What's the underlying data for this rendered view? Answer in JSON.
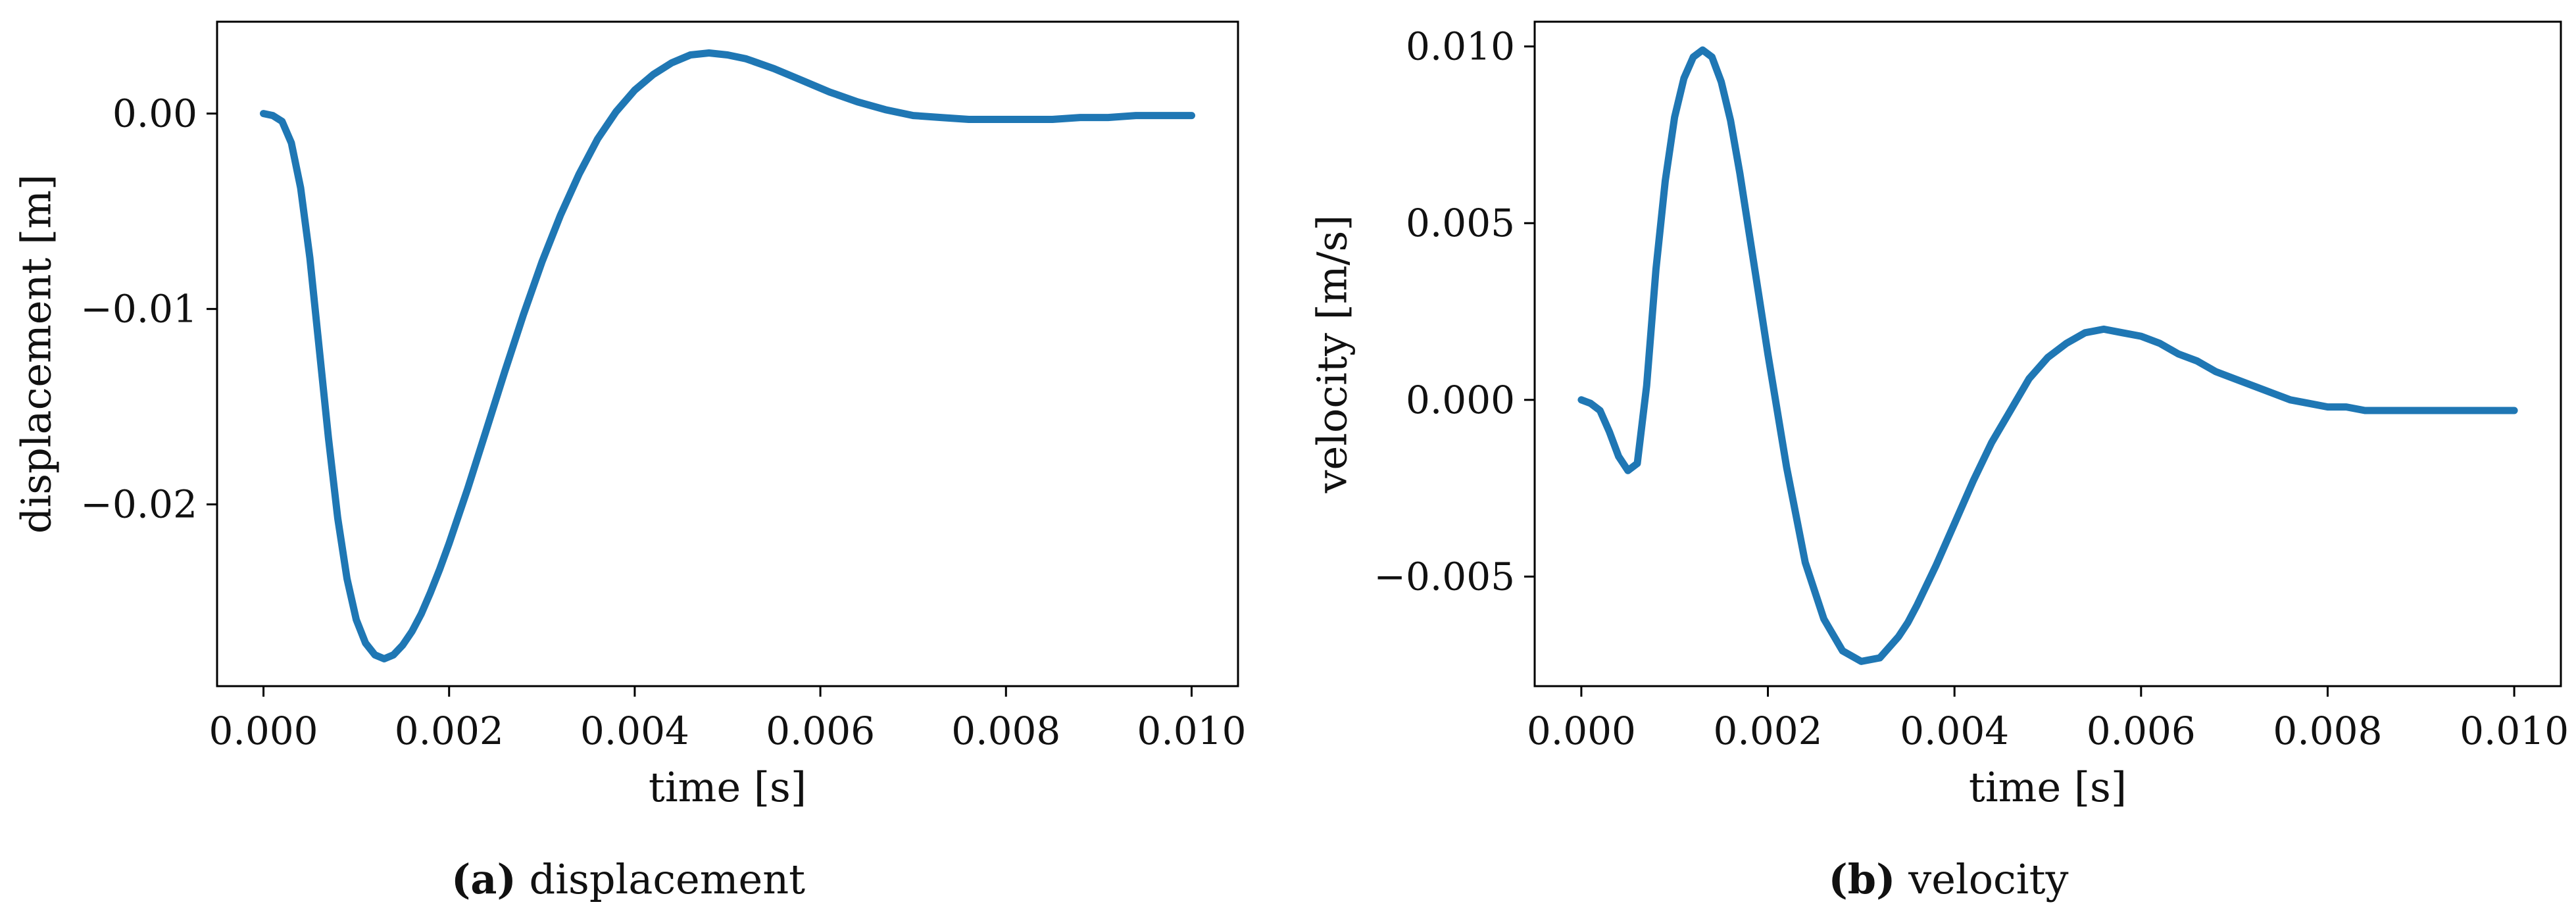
{
  "chart_data": [
    {
      "type": "line",
      "caption_letter": "(a)",
      "caption_text": "displacement",
      "xlabel": "time [s]",
      "ylabel": "displacement [m]",
      "xlim": [
        -0.0005,
        0.0105
      ],
      "ylim": [
        -0.0293,
        0.0047
      ],
      "xticks": [
        0.0,
        0.002,
        0.004,
        0.006,
        0.008,
        0.01
      ],
      "xtick_labels": [
        "0.000",
        "0.002",
        "0.004",
        "0.006",
        "0.008",
        "0.010"
      ],
      "yticks": [
        0.0,
        -0.01,
        -0.02
      ],
      "ytick_labels": [
        "0.00",
        "−0.01",
        "−0.02"
      ],
      "grid": false,
      "color": "#1f77b4",
      "series": [
        {
          "x": [
            0.0,
            0.0001,
            0.0002,
            0.0003,
            0.0004,
            0.0005,
            0.0006,
            0.0007,
            0.0008,
            0.0009,
            0.001,
            0.0011,
            0.0012,
            0.0013,
            0.0014,
            0.0015,
            0.0016,
            0.0017,
            0.0018,
            0.0019,
            0.002,
            0.0022,
            0.0024,
            0.0026,
            0.0028,
            0.003,
            0.0032,
            0.0034,
            0.0036,
            0.0038,
            0.004,
            0.0042,
            0.0044,
            0.0046,
            0.0048,
            0.005,
            0.0052,
            0.0055,
            0.0058,
            0.0061,
            0.0064,
            0.0067,
            0.007,
            0.0073,
            0.0076,
            0.0079,
            0.0082,
            0.0085,
            0.0088,
            0.0091,
            0.0094,
            0.0097,
            0.01
          ],
          "y": [
            0.0,
            -0.0001,
            -0.0004,
            -0.0015,
            -0.0038,
            -0.0074,
            -0.012,
            -0.0166,
            -0.0207,
            -0.0238,
            -0.0259,
            -0.0271,
            -0.0277,
            -0.0279,
            -0.0277,
            -0.0272,
            -0.0265,
            -0.0256,
            -0.0245,
            -0.0233,
            -0.022,
            -0.0192,
            -0.0162,
            -0.0132,
            -0.0103,
            -0.0076,
            -0.0052,
            -0.0031,
            -0.0013,
            0.0001,
            0.0012,
            0.002,
            0.0026,
            0.003,
            0.0031,
            0.003,
            0.0028,
            0.0023,
            0.0017,
            0.0011,
            0.0006,
            0.0002,
            -0.0001,
            -0.0002,
            -0.0003,
            -0.0003,
            -0.0003,
            -0.0003,
            -0.0002,
            -0.0002,
            -0.0001,
            -0.0001,
            -0.0001
          ]
        }
      ]
    },
    {
      "type": "line",
      "caption_letter": "(b)",
      "caption_text": "velocity",
      "xlabel": "time [s]",
      "ylabel": "velocity [m/s]",
      "xlim": [
        -0.0005,
        0.0105
      ],
      "ylim": [
        -0.0081,
        0.0107
      ],
      "xticks": [
        0.0,
        0.002,
        0.004,
        0.006,
        0.008,
        0.01
      ],
      "xtick_labels": [
        "0.000",
        "0.002",
        "0.004",
        "0.006",
        "0.008",
        "0.010"
      ],
      "yticks": [
        0.01,
        0.005,
        0.0,
        -0.005
      ],
      "ytick_labels": [
        "0.010",
        "0.005",
        "0.000",
        "−0.005"
      ],
      "grid": false,
      "color": "#1f77b4",
      "series": [
        {
          "x": [
            0.0,
            0.0001,
            0.0002,
            0.0003,
            0.0004,
            0.0005,
            0.0006,
            0.0007,
            0.0008,
            0.0009,
            0.001,
            0.0011,
            0.0012,
            0.0013,
            0.0014,
            0.0015,
            0.0016,
            0.0017,
            0.0018,
            0.0019,
            0.002,
            0.0022,
            0.0024,
            0.0026,
            0.0028,
            0.003,
            0.0032,
            0.0034,
            0.0035,
            0.0036,
            0.0038,
            0.004,
            0.0042,
            0.0044,
            0.0046,
            0.0048,
            0.005,
            0.0052,
            0.0054,
            0.0056,
            0.0058,
            0.006,
            0.0062,
            0.0064,
            0.0066,
            0.0068,
            0.007,
            0.0072,
            0.0074,
            0.0076,
            0.0078,
            0.008,
            0.0082,
            0.0084,
            0.0086,
            0.0088,
            0.009,
            0.0092,
            0.0094,
            0.0096,
            0.0098,
            0.01
          ],
          "y": [
            0.0,
            -0.0001,
            -0.0003,
            -0.0009,
            -0.0016,
            -0.002,
            -0.0018,
            0.0004,
            0.0037,
            0.0062,
            0.008,
            0.0091,
            0.0097,
            0.0099,
            0.0097,
            0.009,
            0.0079,
            0.0064,
            0.0047,
            0.003,
            0.0013,
            -0.0019,
            -0.0046,
            -0.0062,
            -0.0071,
            -0.0074,
            -0.0073,
            -0.0067,
            -0.0063,
            -0.0058,
            -0.0047,
            -0.0035,
            -0.0023,
            -0.0012,
            -0.0003,
            0.0006,
            0.0012,
            0.0016,
            0.0019,
            0.002,
            0.0019,
            0.0018,
            0.0016,
            0.0013,
            0.0011,
            0.0008,
            0.0006,
            0.0004,
            0.0002,
            0.0,
            -0.0001,
            -0.0002,
            -0.0002,
            -0.0003,
            -0.0003,
            -0.0003,
            -0.0003,
            -0.0003,
            -0.0003,
            -0.0003,
            -0.0003,
            -0.0003
          ]
        }
      ]
    }
  ]
}
